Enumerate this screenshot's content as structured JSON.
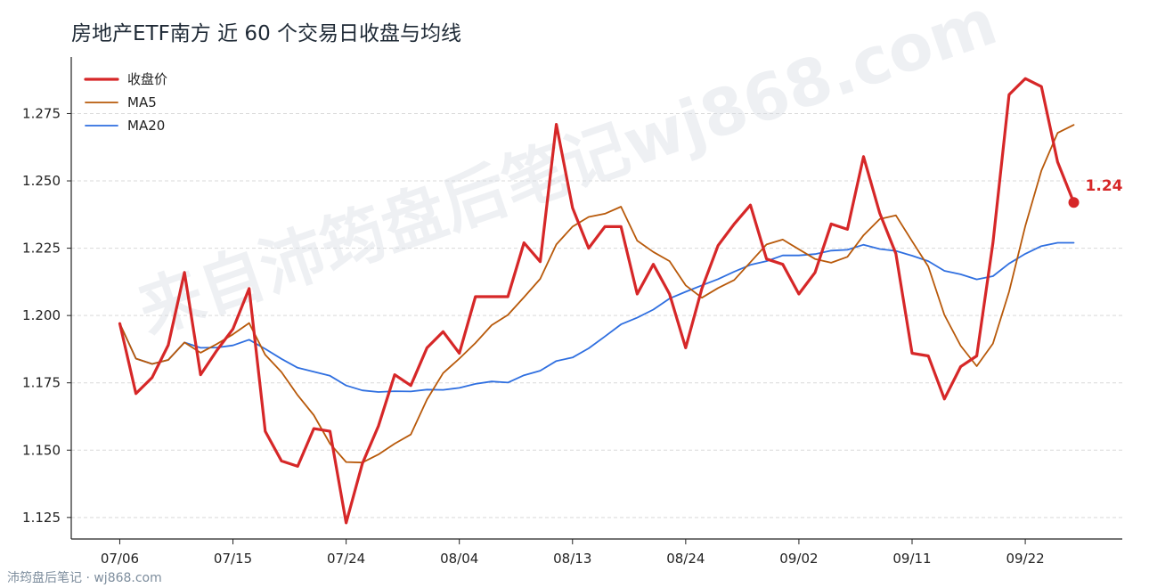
{
  "chart_data": {
    "type": "line",
    "title": "房地产ETF南方 近 60 个交易日收盘与均线",
    "x_tick_labels": [
      "07/06",
      "07/15",
      "07/24",
      "08/04",
      "08/13",
      "08/24",
      "09/02",
      "09/11",
      "09/22"
    ],
    "x_tick_indices": [
      0,
      7,
      14,
      21,
      28,
      35,
      42,
      49,
      56
    ],
    "y_ticks": [
      1.125,
      1.15,
      1.175,
      1.2,
      1.225,
      1.25,
      1.275
    ],
    "y_tick_labels": [
      "1.125",
      "1.150",
      "1.175",
      "1.200",
      "1.225",
      "1.250",
      "1.275"
    ],
    "ylim": [
      1.117,
      1.296
    ],
    "xlim": [
      -3,
      62
    ],
    "grid": true,
    "legend_position": "top-left",
    "series": [
      {
        "name": "收盘价",
        "color": "#d62728",
        "values": [
          1.197,
          1.171,
          1.177,
          1.189,
          1.216,
          1.178,
          1.187,
          1.195,
          1.21,
          1.157,
          1.146,
          1.144,
          1.158,
          1.157,
          1.123,
          1.145,
          1.159,
          1.178,
          1.174,
          1.188,
          1.194,
          1.186,
          1.207,
          1.207,
          1.207,
          1.227,
          1.22,
          1.271,
          1.24,
          1.225,
          1.233,
          1.233,
          1.208,
          1.219,
          1.208,
          1.188,
          1.21,
          1.226,
          1.234,
          1.241,
          1.221,
          1.219,
          1.208,
          1.216,
          1.234,
          1.232,
          1.259,
          1.238,
          1.223,
          1.186,
          1.185,
          1.169,
          1.181,
          1.185,
          1.227,
          1.282,
          1.288,
          1.285,
          1.257,
          1.242
        ]
      },
      {
        "name": "MA5",
        "color": "#b8590a",
        "values": [
          1.197,
          1.184,
          1.182,
          1.1835,
          1.19,
          1.1862,
          1.1894,
          1.193,
          1.1972,
          1.1854,
          1.179,
          1.1704,
          1.163,
          1.1524,
          1.1456,
          1.1454,
          1.1484,
          1.1524,
          1.1558,
          1.1688,
          1.1786,
          1.184,
          1.1898,
          1.1964,
          1.2002,
          1.2068,
          1.2136,
          1.2264,
          1.233,
          1.2366,
          1.2378,
          1.2404,
          1.2278,
          1.2236,
          1.2202,
          1.2112,
          1.2066,
          1.2102,
          1.2132,
          1.2198,
          1.2264,
          1.2282,
          1.2246,
          1.221,
          1.2196,
          1.2218,
          1.2298,
          1.2358,
          1.2372,
          1.2276,
          1.2182,
          1.2002,
          1.1888,
          1.1812,
          1.1896,
          1.2088,
          1.2332,
          1.2538,
          1.2678,
          1.2708
        ]
      },
      {
        "name": "MA20",
        "color": "#2f6fe0",
        "values": [
          1.197,
          1.184,
          1.182,
          1.1835,
          1.19,
          1.188,
          1.1881,
          1.1889,
          1.191,
          1.1876,
          1.1839,
          1.1806,
          1.1791,
          1.1776,
          1.174,
          1.1722,
          1.1716,
          1.1719,
          1.1718,
          1.1725,
          1.1724,
          1.1731,
          1.1746,
          1.1755,
          1.1751,
          1.1778,
          1.1795,
          1.1831,
          1.1844,
          1.1878,
          1.1922,
          1.1967,
          1.1992,
          1.2022,
          1.2063,
          1.2088,
          1.2112,
          1.2135,
          1.2163,
          1.2188,
          1.2202,
          1.2223,
          1.2223,
          1.2228,
          1.2241,
          1.2244,
          1.2263,
          1.2247,
          1.224,
          1.2222,
          1.2202,
          1.2166,
          1.2153,
          1.2134,
          1.2146,
          1.2193,
          1.2229,
          1.2258,
          1.227,
          1.227
        ]
      }
    ],
    "end_label": {
      "text": "1.24",
      "color": "#d62728"
    }
  },
  "watermark": "来自沛筠盘后笔记wj868.com",
  "footer": "沛筠盘后笔记 · wj868.com"
}
